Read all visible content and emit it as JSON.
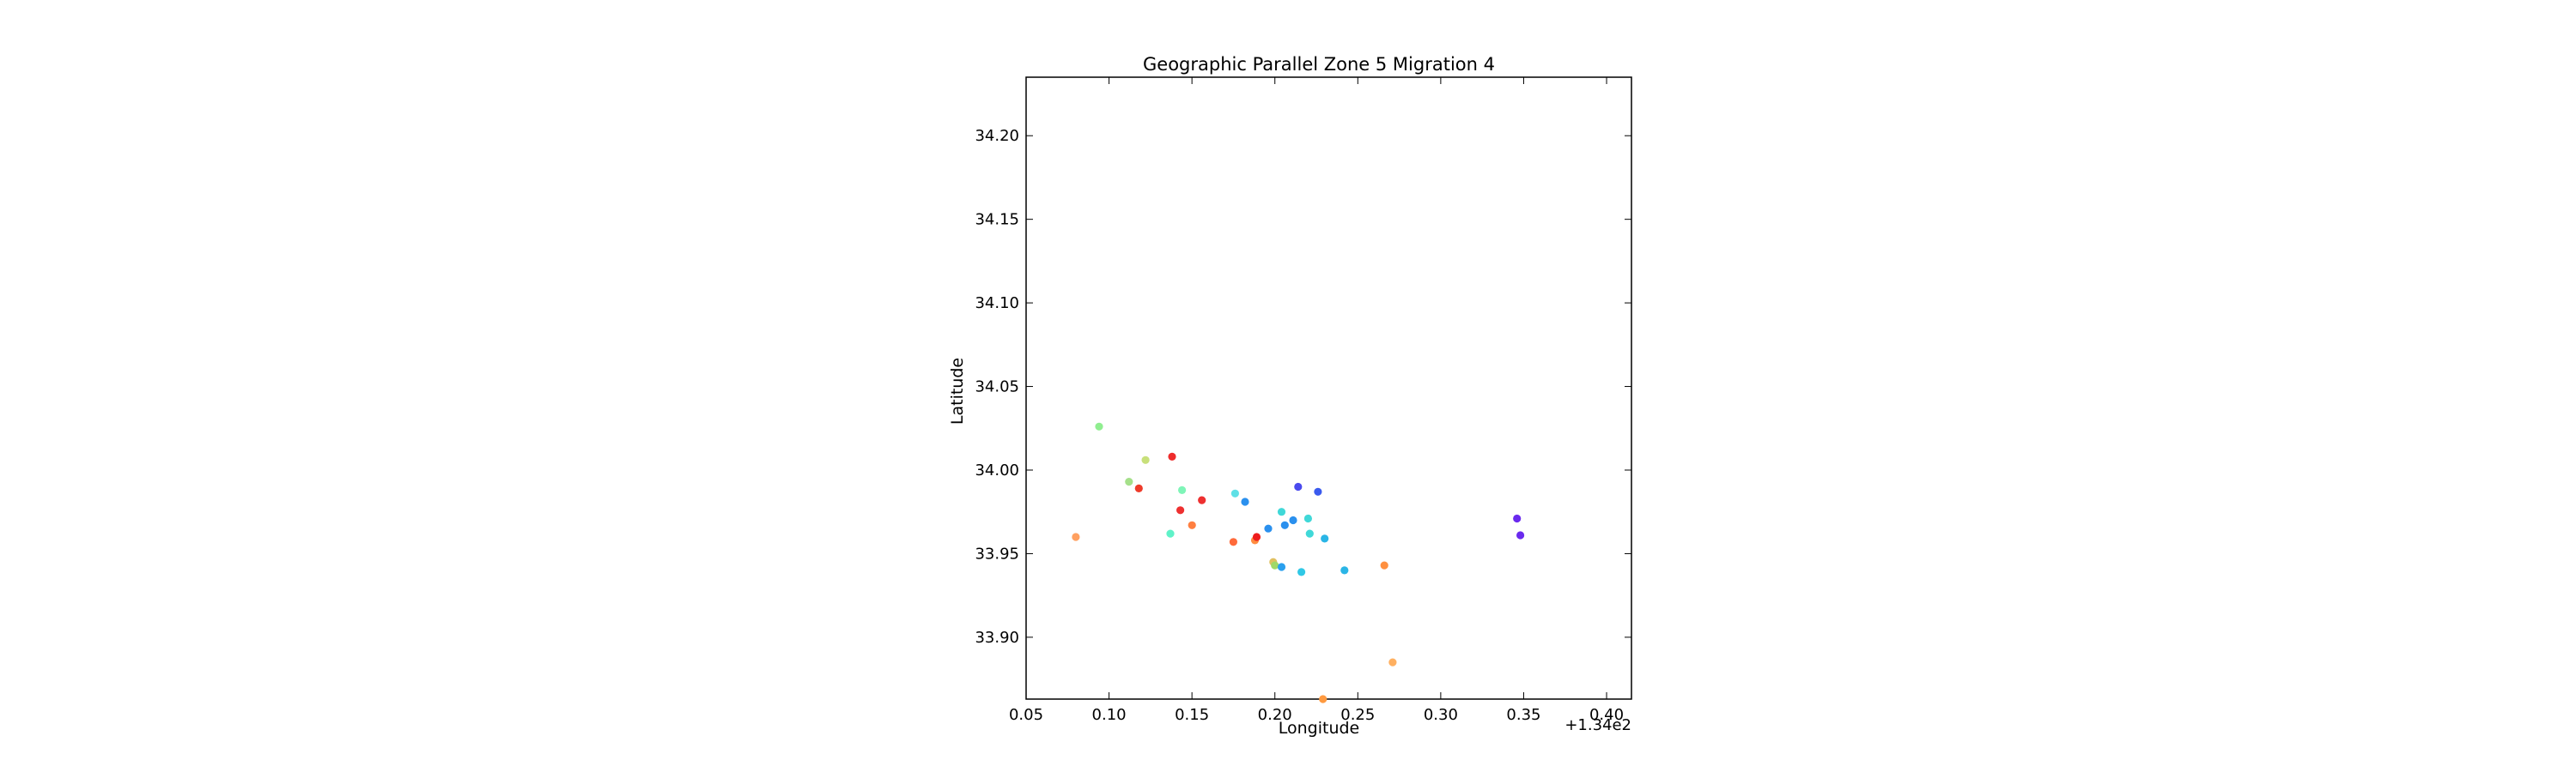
{
  "chart_data": {
    "type": "scatter",
    "title": "Geographic Parallel Zone 5 Migration 4",
    "xlabel": "Longitude",
    "ylabel": "Latitude",
    "x_offset_label": "+1.34e2",
    "x_offset": 134,
    "xlim": [
      134.05,
      134.415
    ],
    "ylim": [
      33.863,
      34.235
    ],
    "x_ticks": [
      134.05,
      134.1,
      134.15,
      134.2,
      134.25,
      134.3,
      134.35,
      134.4
    ],
    "x_tick_labels": [
      "0.05",
      "0.10",
      "0.15",
      "0.20",
      "0.25",
      "0.30",
      "0.35",
      "0.40"
    ],
    "y_ticks": [
      33.9,
      33.95,
      34.0,
      34.05,
      34.1,
      34.15,
      34.2
    ],
    "y_tick_labels": [
      "33.90",
      "33.95",
      "34.00",
      "34.05",
      "34.10",
      "34.15",
      "34.20"
    ],
    "grid": false,
    "points": [
      {
        "x": 134.094,
        "y": 34.026,
        "color": "#90ee90"
      },
      {
        "x": 134.122,
        "y": 34.006,
        "color": "#c8e07a"
      },
      {
        "x": 134.138,
        "y": 34.008,
        "color": "#ee2c2c"
      },
      {
        "x": 134.112,
        "y": 33.993,
        "color": "#a5e08a"
      },
      {
        "x": 134.118,
        "y": 33.989,
        "color": "#ee3b2a"
      },
      {
        "x": 134.144,
        "y": 33.988,
        "color": "#7ff5b8"
      },
      {
        "x": 134.143,
        "y": 33.976,
        "color": "#ee3030"
      },
      {
        "x": 134.156,
        "y": 33.982,
        "color": "#ee3030"
      },
      {
        "x": 134.15,
        "y": 33.967,
        "color": "#ff7f40"
      },
      {
        "x": 134.137,
        "y": 33.962,
        "color": "#5ff2c8"
      },
      {
        "x": 134.08,
        "y": 33.96,
        "color": "#ffa060"
      },
      {
        "x": 134.176,
        "y": 33.986,
        "color": "#5fe0e6"
      },
      {
        "x": 134.182,
        "y": 33.981,
        "color": "#2a90ee"
      },
      {
        "x": 134.175,
        "y": 33.957,
        "color": "#ff6a3a"
      },
      {
        "x": 134.188,
        "y": 33.958,
        "color": "#ff8c40"
      },
      {
        "x": 134.189,
        "y": 33.96,
        "color": "#ee1c1c"
      },
      {
        "x": 134.196,
        "y": 33.965,
        "color": "#2a90ee"
      },
      {
        "x": 134.204,
        "y": 33.975,
        "color": "#40d8d8"
      },
      {
        "x": 134.206,
        "y": 33.967,
        "color": "#2a90ee"
      },
      {
        "x": 134.211,
        "y": 33.97,
        "color": "#2a90ee"
      },
      {
        "x": 134.214,
        "y": 33.99,
        "color": "#4a4aee"
      },
      {
        "x": 134.22,
        "y": 33.971,
        "color": "#40d8d8"
      },
      {
        "x": 134.226,
        "y": 33.987,
        "color": "#3a5aee"
      },
      {
        "x": 134.221,
        "y": 33.962,
        "color": "#40d8d8"
      },
      {
        "x": 134.23,
        "y": 33.959,
        "color": "#2ab5e6"
      },
      {
        "x": 134.199,
        "y": 33.945,
        "color": "#e0c060"
      },
      {
        "x": 134.2,
        "y": 33.943,
        "color": "#a0d868"
      },
      {
        "x": 134.204,
        "y": 33.942,
        "color": "#2aa0ee"
      },
      {
        "x": 134.216,
        "y": 33.939,
        "color": "#30c8e6"
      },
      {
        "x": 134.242,
        "y": 33.94,
        "color": "#2ab5e6"
      },
      {
        "x": 134.266,
        "y": 33.943,
        "color": "#ff9040"
      },
      {
        "x": 134.271,
        "y": 33.885,
        "color": "#ffb060"
      },
      {
        "x": 134.346,
        "y": 33.971,
        "color": "#6a2aee"
      },
      {
        "x": 134.348,
        "y": 33.961,
        "color": "#6a2aee"
      },
      {
        "x": 134.229,
        "y": 33.863,
        "color": "#ff9a40"
      }
    ]
  }
}
